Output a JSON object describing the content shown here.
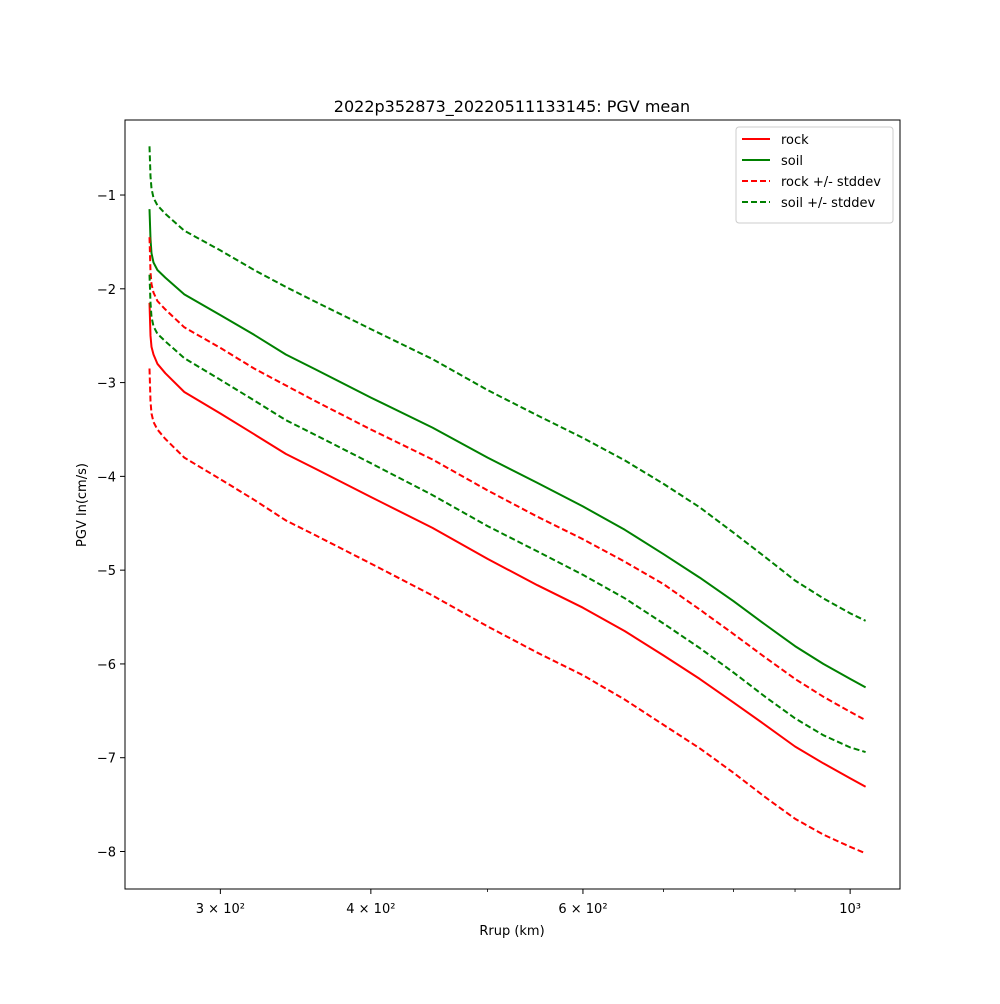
{
  "chart_data": {
    "type": "line",
    "title": "2022p352873_20220511133145: PGV mean",
    "xlabel": "Rrup (km)",
    "ylabel": "PGV ln(cm/s)",
    "xscale": "log",
    "xlim": [
      250,
      1100
    ],
    "ylim": [
      -8.4,
      -0.2
    ],
    "grid": false,
    "legend_position": "top-right",
    "x_ticks": [
      {
        "value": 300,
        "label": "3 × 10²"
      },
      {
        "value": 400,
        "label": "4 × 10²"
      },
      {
        "value": 600,
        "label": "6 × 10²"
      },
      {
        "value": 1000,
        "label": "10³"
      }
    ],
    "x_minor_ticks": [
      500,
      700,
      800,
      900
    ],
    "y_ticks": [
      -1,
      -2,
      -3,
      -4,
      -5,
      -6,
      -7,
      -8
    ],
    "y_tick_labels": [
      "−1",
      "−2",
      "−3",
      "−4",
      "−5",
      "−6",
      "−7",
      "−8"
    ],
    "x": [
      262,
      262.5,
      263,
      264,
      266,
      270,
      280,
      300,
      320,
      340,
      360,
      400,
      450,
      500,
      550,
      600,
      650,
      700,
      750,
      800,
      850,
      900,
      950,
      1000,
      1030
    ],
    "series": [
      {
        "name": "rock",
        "color": "#ff0000",
        "style": "solid",
        "values": [
          -2.15,
          -2.5,
          -2.62,
          -2.7,
          -2.8,
          -2.9,
          -3.1,
          -3.33,
          -3.55,
          -3.76,
          -3.92,
          -4.22,
          -4.55,
          -4.88,
          -5.16,
          -5.4,
          -5.65,
          -5.91,
          -6.16,
          -6.41,
          -6.65,
          -6.88,
          -7.06,
          -7.22,
          -7.31
        ]
      },
      {
        "name": "soil",
        "color": "#008000",
        "style": "solid",
        "values": [
          -1.15,
          -1.47,
          -1.62,
          -1.72,
          -1.8,
          -1.88,
          -2.06,
          -2.28,
          -2.49,
          -2.7,
          -2.86,
          -3.16,
          -3.48,
          -3.8,
          -4.07,
          -4.32,
          -4.57,
          -4.83,
          -5.08,
          -5.33,
          -5.58,
          -5.81,
          -6.0,
          -6.16,
          -6.25
        ]
      },
      {
        "name": "rock +/- stddev",
        "color": "#ff0000",
        "style": "dashed",
        "values": [
          -1.45,
          -1.82,
          -1.95,
          -2.04,
          -2.13,
          -2.22,
          -2.41,
          -2.63,
          -2.85,
          -3.03,
          -3.2,
          -3.5,
          -3.82,
          -4.15,
          -4.43,
          -4.67,
          -4.91,
          -5.15,
          -5.42,
          -5.68,
          -5.93,
          -6.16,
          -6.35,
          -6.51,
          -6.6
        ]
      },
      {
        "name": "soil +/- stddev",
        "color": "#008000",
        "style": "dashed",
        "values": [
          -0.48,
          -0.8,
          -0.93,
          -1.03,
          -1.11,
          -1.2,
          -1.38,
          -1.59,
          -1.8,
          -1.98,
          -2.14,
          -2.43,
          -2.75,
          -3.08,
          -3.35,
          -3.59,
          -3.83,
          -4.08,
          -4.33,
          -4.6,
          -4.86,
          -5.11,
          -5.3,
          -5.46,
          -5.54
        ]
      },
      {
        "name": "",
        "color": "#ff0000",
        "style": "dashed",
        "values": [
          -2.85,
          -3.2,
          -3.33,
          -3.42,
          -3.5,
          -3.6,
          -3.8,
          -4.03,
          -4.25,
          -4.47,
          -4.63,
          -4.93,
          -5.27,
          -5.6,
          -5.88,
          -6.12,
          -6.38,
          -6.65,
          -6.9,
          -7.16,
          -7.42,
          -7.65,
          -7.82,
          -7.95,
          -8.02
        ]
      },
      {
        "name": "",
        "color": "#008000",
        "style": "dashed",
        "values": [
          -1.85,
          -2.15,
          -2.3,
          -2.4,
          -2.48,
          -2.56,
          -2.74,
          -2.97,
          -3.19,
          -3.4,
          -3.56,
          -3.86,
          -4.2,
          -4.53,
          -4.8,
          -5.05,
          -5.3,
          -5.57,
          -5.83,
          -6.09,
          -6.35,
          -6.58,
          -6.76,
          -6.89,
          -6.94
        ]
      }
    ]
  }
}
